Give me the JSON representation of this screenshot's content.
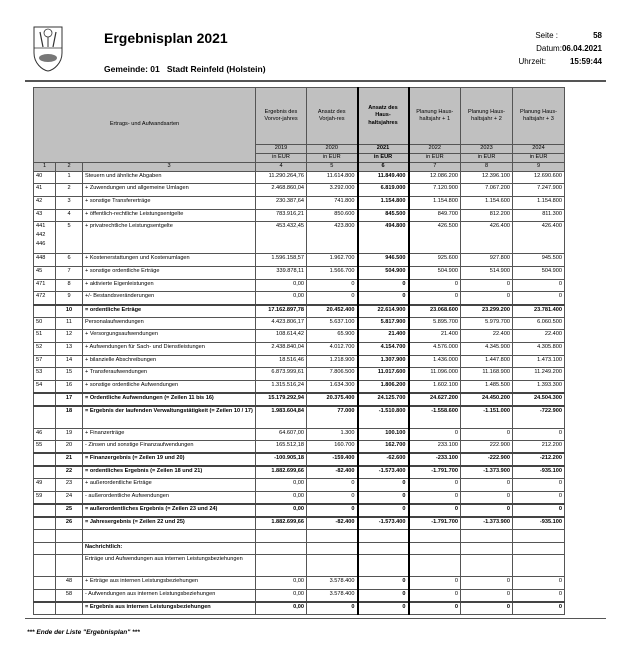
{
  "header": {
    "title": "Ergebnisplan 2021",
    "gemeinde_label": "Gemeinde: 01",
    "gemeinde_name": "Stadt Reinfeld (Holstein)",
    "seite_label": "Seite :",
    "seite": "58",
    "datum_label": "Datum:",
    "datum": "06.04.2021",
    "uhrzeit_label": "Uhrzeit:",
    "uhrzeit": "15:59:44"
  },
  "table_header": {
    "col3": "Ertrags- und Aufwandsarten",
    "cols": [
      {
        "label": "Ergebnis des Vorvor-jahres",
        "year": "2019",
        "unit": "in EUR",
        "num": "4"
      },
      {
        "label": "Ansatz des Vorjah-res",
        "year": "2020",
        "unit": "in EUR",
        "num": "5"
      },
      {
        "label": "Ansatz des Haus-haltsjahres",
        "year": "2021",
        "unit": "in EUR",
        "num": "6"
      },
      {
        "label": "Planung Haus-haltsjahr + 1",
        "year": "2022",
        "unit": "in EUR",
        "num": "7"
      },
      {
        "label": "Planung Haus-haltsjahr + 2",
        "year": "2023",
        "unit": "in EUR",
        "num": "8"
      },
      {
        "label": "Planung Haus-haltsjahr + 3",
        "year": "2024",
        "unit": "in EUR",
        "num": "9"
      }
    ],
    "num1": "1",
    "num2": "2",
    "num3": "3"
  },
  "rows": [
    {
      "a": "40",
      "n": "1",
      "t": "Steuern und ähnliche Abgaben",
      "v": [
        "11.290.264,76",
        "11.614.800",
        "11.849.400",
        "12.086.200",
        "12.396.100",
        "12.690.600"
      ]
    },
    {
      "a": "41",
      "n": "2",
      "t": "+ Zuwendungen und allgemeine Umlagen",
      "v": [
        "2.468.860,04",
        "3.292.000",
        "6.819.000",
        "7.120.900",
        "7.067.200",
        "7.247.900"
      ]
    },
    {
      "a": "42",
      "n": "3",
      "t": "+ sonstige Transfererträge",
      "v": [
        "230.387,64",
        "741.800",
        "1.154.800",
        "1.154.800",
        "1.154.600",
        "1.154.800"
      ]
    },
    {
      "a": "43",
      "n": "4",
      "t": "+ öffentlich-rechtliche Leistungsentgelte",
      "v": [
        "783.916,21",
        "850.600",
        "845.500",
        "849.700",
        "812.200",
        "811.300"
      ]
    },
    {
      "a": "441\n442\n446",
      "n": "5",
      "t": "+ privatrechtliche Leistungsentgelte",
      "v": [
        "453.432,45",
        "423.800",
        "494.800",
        "426.500",
        "426.400",
        "426.400"
      ],
      "h": 3
    },
    {
      "a": "448",
      "n": "6",
      "t": "+ Kostenerstattungen und Kostenumlagen",
      "v": [
        "1.596.158,57",
        "1.962.700",
        "946.500",
        "925.600",
        "927.800",
        "945.500"
      ]
    },
    {
      "a": "45",
      "n": "7",
      "t": "+ sonstige ordentliche Erträge",
      "v": [
        "339.878,11",
        "1.566.700",
        "504.900",
        "504.900",
        "514.900",
        "504.900"
      ]
    },
    {
      "a": "471",
      "n": "8",
      "t": "+ aktivierte Eigenleistungen",
      "v": [
        "0,00",
        "0",
        "0",
        "0",
        "0",
        "0"
      ]
    },
    {
      "a": "472",
      "n": "9",
      "t": "+/- Bestandsveränderungen",
      "v": [
        "0,00",
        "0",
        "0",
        "0",
        "0",
        "0"
      ]
    },
    {
      "a": "",
      "n": "10",
      "t": "= ordentliche Erträge",
      "v": [
        "17.162.897,78",
        "20.452.400",
        "22.614.900",
        "23.068.600",
        "23.299.200",
        "23.781.400"
      ],
      "sum": true
    },
    {
      "a": "50",
      "n": "11",
      "t": "Personalaufwendungen",
      "v": [
        "4.423.806,17",
        "5.637.100",
        "5.817.900",
        "5.895.700",
        "5.979.700",
        "6.060.500"
      ]
    },
    {
      "a": "51",
      "n": "12",
      "t": "+ Versorgungsaufwendungen",
      "v": [
        "108.614,42",
        "65.900",
        "21.400",
        "21.400",
        "22.400",
        "22.400"
      ]
    },
    {
      "a": "52",
      "n": "13",
      "t": "+ Aufwendungen für Sach- und Dienstleistungen",
      "v": [
        "2.438.840,04",
        "4.012.700",
        "4.154.700",
        "4.576.000",
        "4.345.900",
        "4.305.800"
      ]
    },
    {
      "a": "57",
      "n": "14",
      "t": "+ bilanzielle Abschreibungen",
      "v": [
        "18.516,46",
        "1.218.900",
        "1.307.900",
        "1.436.000",
        "1.447.800",
        "1.473.100"
      ]
    },
    {
      "a": "53",
      "n": "15",
      "t": "+ Transferaufwendungen",
      "v": [
        "6.873.999,61",
        "7.806.500",
        "11.017.600",
        "11.096.000",
        "11.168.900",
        "11.249.200"
      ]
    },
    {
      "a": "54",
      "n": "16",
      "t": "+ sonstige ordentliche Aufwendungen",
      "v": [
        "1.315.516,24",
        "1.634.300",
        "1.806.200",
        "1.602.100",
        "1.485.500",
        "1.393.300"
      ]
    },
    {
      "a": "",
      "n": "17",
      "t": "= Ordentliche Aufwendungen (= Zeilen 11 bis 16)",
      "v": [
        "15.179.292,94",
        "20.375.400",
        "24.125.700",
        "24.627.200",
        "24.450.200",
        "24.504.300"
      ],
      "sum": true
    },
    {
      "a": "",
      "n": "18",
      "t": "= Ergebnis der laufenden Verwaltungstätigkeit (= Zeilen 10 / 17)",
      "v": [
        "1.983.604,84",
        "77.000",
        "-1.510.800",
        "-1.558.600",
        "-1.151.000",
        "-722.900"
      ],
      "sum": true,
      "h": 2
    },
    {
      "a": "46",
      "n": "19",
      "t": "+ Finanzerträge",
      "v": [
        "64.607,00",
        "1.300",
        "100.100",
        "0",
        "0",
        "0"
      ]
    },
    {
      "a": "55",
      "n": "20",
      "t": "- Zinsen und sonstige Finanzaufwendungen",
      "v": [
        "165.512,18",
        "160.700",
        "162.700",
        "233.100",
        "222.900",
        "212.200"
      ]
    },
    {
      "a": "",
      "n": "21",
      "t": "= Finanzergebnis (= Zeilen 19 und 20)",
      "v": [
        "-100.905,18",
        "-159.400",
        "-62.600",
        "-233.100",
        "-222.900",
        "-212.200"
      ],
      "sum": true
    },
    {
      "a": "",
      "n": "22",
      "t": "= ordentliches Ergebnis (= Zeilen 18 und 21)",
      "v": [
        "1.882.699,66",
        "-82.400",
        "-1.573.400",
        "-1.791.700",
        "-1.373.900",
        "-935.100"
      ],
      "sum": true
    },
    {
      "a": "49",
      "n": "23",
      "t": "+ außerordentliche Erträge",
      "v": [
        "0,00",
        "0",
        "0",
        "0",
        "0",
        "0"
      ]
    },
    {
      "a": "59",
      "n": "24",
      "t": "- außerordentliche Aufwendungen",
      "v": [
        "0,00",
        "0",
        "0",
        "0",
        "0",
        "0"
      ]
    },
    {
      "a": "",
      "n": "25",
      "t": "= außerordentliches Ergebnis (= Zeilen 23 und 24)",
      "v": [
        "0,00",
        "0",
        "0",
        "0",
        "0",
        "0"
      ],
      "sum": true
    },
    {
      "a": "",
      "n": "26",
      "t": "= Jahresergebnis (= Zeilen 22 und 25)",
      "v": [
        "1.882.699,66",
        "-82.400",
        "-1.573.400",
        "-1.791.700",
        "-1.373.900",
        "-935.100"
      ],
      "sum": true
    },
    {
      "a": "",
      "n": "",
      "t": "",
      "v": [
        "",
        "",
        "",
        "",
        "",
        ""
      ]
    },
    {
      "a": "",
      "n": "",
      "t": "Nachrichtlich:",
      "v": [
        "",
        "",
        "",
        "",
        "",
        ""
      ],
      "bt": true
    },
    {
      "a": "",
      "n": "",
      "t": "Erträge und Aufwendungen aus internen Leistungsbeziehungen",
      "v": [
        "",
        "",
        "",
        "",
        "",
        ""
      ],
      "h": 2
    },
    {
      "a": "",
      "n": "48",
      "t": "+ Erträge aus internen Leistungsbeziehungen",
      "v": [
        "0,00",
        "3.578.400",
        "0",
        "0",
        "0",
        "0"
      ]
    },
    {
      "a": "",
      "n": "58",
      "t": "- Aufwendungen aus internen Leistungsbeziehungen",
      "v": [
        "0,00",
        "3.578.400",
        "0",
        "0",
        "0",
        "0"
      ]
    },
    {
      "a": "",
      "n": "",
      "t": "= Ergebnis aus internen Leistungsbeziehungen",
      "v": [
        "0,00",
        "0",
        "0",
        "0",
        "0",
        "0"
      ],
      "sum": true
    }
  ],
  "footer": "*** Ende der Liste \"Ergebnisplan\" ***"
}
